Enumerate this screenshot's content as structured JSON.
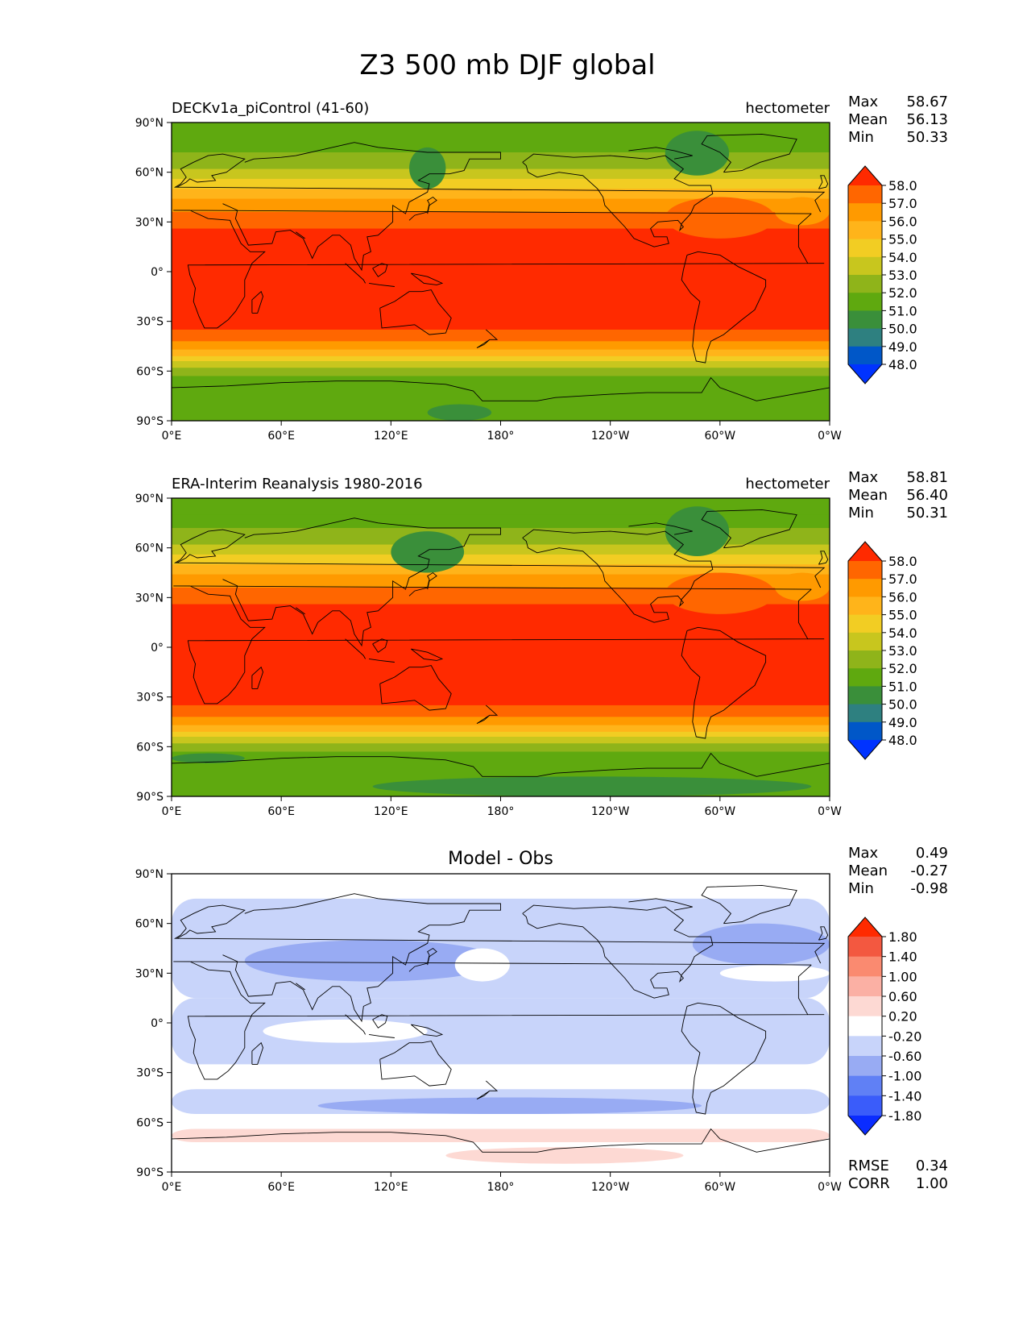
{
  "suptitle": "Z3 500 mb DJF global",
  "lat_ticks": [
    "90°N",
    "60°N",
    "30°N",
    "0°",
    "30°S",
    "60°S",
    "90°S"
  ],
  "lon_ticks": [
    "0°E",
    "60°E",
    "120°E",
    "180°",
    "120°W",
    "60°W",
    "0°W"
  ],
  "full_levels": [
    "58.0",
    "57.0",
    "56.0",
    "55.0",
    "54.0",
    "53.0",
    "52.0",
    "51.0",
    "50.0",
    "49.0",
    "48.0"
  ],
  "full_colors": [
    "#ff2a00",
    "#ff6600",
    "#ff9a00",
    "#ffb41a",
    "#f2cd23",
    "#c8c61e",
    "#8fb41a",
    "#5fa90f",
    "#3a8f3a",
    "#2e8080",
    "#0057c8",
    "#0033ff"
  ],
  "diff_levels": [
    "1.80",
    "1.40",
    "1.00",
    "0.60",
    "0.20",
    "-0.20",
    "-0.60",
    "-1.00",
    "-1.40",
    "-1.80"
  ],
  "diff_colors": [
    "#ff2a00",
    "#f35840",
    "#fa8a70",
    "#fbb0a4",
    "#fdd9d3",
    "#ffffff",
    "#c8d4fa",
    "#98abf3",
    "#6080f5",
    "#3a5cfa",
    "#0a2cff"
  ],
  "panels": [
    {
      "left_title": "DECKv1a_piControl (41-60)",
      "center_title": "",
      "right_title": "hectometer",
      "stats": [
        {
          "label": "Max",
          "value": "58.67"
        },
        {
          "label": "Mean",
          "value": "56.13"
        },
        {
          "label": "Min",
          "value": "50.33"
        }
      ],
      "bottom_stats": []
    },
    {
      "left_title": "ERA-Interim Reanalysis 1980-2016",
      "center_title": "",
      "right_title": "hectometer",
      "stats": [
        {
          "label": "Max",
          "value": "58.81"
        },
        {
          "label": "Mean",
          "value": "56.40"
        },
        {
          "label": "Min",
          "value": "50.31"
        }
      ],
      "bottom_stats": []
    },
    {
      "left_title": "",
      "center_title": "Model - Obs",
      "right_title": "",
      "stats": [
        {
          "label": "Max",
          "value": "0.49"
        },
        {
          "label": "Mean",
          "value": "-0.27"
        },
        {
          "label": "Min",
          "value": "-0.98"
        }
      ],
      "bottom_stats": [
        {
          "label": "RMSE",
          "value": "0.34"
        },
        {
          "label": "CORR",
          "value": "1.00"
        }
      ]
    }
  ],
  "chart_data": [
    {
      "type": "heatmap",
      "title": "DECKv1a_piControl (41-60)",
      "units": "hectometer",
      "x_ticks": [
        "0°E",
        "60°E",
        "120°E",
        "180°",
        "120°W",
        "60°W",
        "0°W"
      ],
      "y_ticks": [
        "90°N",
        "60°N",
        "30°N",
        "0°",
        "30°S",
        "60°S",
        "90°S"
      ],
      "xlim": [
        0,
        360
      ],
      "ylim": [
        -90,
        90
      ],
      "contour_levels": [
        48,
        49,
        50,
        51,
        52,
        53,
        54,
        55,
        56,
        57,
        58
      ],
      "zonal_band_values": [
        {
          "lat": [
            80,
            90
          ],
          "value": 51.5
        },
        {
          "lat": [
            72,
            80
          ],
          "value": 52.0
        },
        {
          "lat": [
            62,
            72
          ],
          "value": 52.5
        },
        {
          "lat": [
            56,
            62
          ],
          "value": 53.5
        },
        {
          "lat": [
            50,
            56
          ],
          "value": 54.5
        },
        {
          "lat": [
            44,
            50
          ],
          "value": 55.5
        },
        {
          "lat": [
            36,
            44
          ],
          "value": 56.5
        },
        {
          "lat": [
            26,
            36
          ],
          "value": 57.5
        },
        {
          "lat": [
            -35,
            26
          ],
          "value": 58.3
        },
        {
          "lat": [
            -42,
            -35
          ],
          "value": 57.5
        },
        {
          "lat": [
            -47,
            -42
          ],
          "value": 56.5
        },
        {
          "lat": [
            -51,
            -47
          ],
          "value": 55.5
        },
        {
          "lat": [
            -54,
            -51
          ],
          "value": 54.5
        },
        {
          "lat": [
            -58,
            -54
          ],
          "value": 53.5
        },
        {
          "lat": [
            -63,
            -58
          ],
          "value": 52.5
        },
        {
          "lat": [
            -90,
            -63
          ],
          "value": 51.5
        }
      ],
      "features": [
        {
          "region": "East Asia trough",
          "lon": [
            130,
            150
          ],
          "lat": [
            50,
            75
          ],
          "value": 50.5
        },
        {
          "region": "Canada trough",
          "lon": [
            270,
            305
          ],
          "lat": [
            58,
            85
          ],
          "value": 50.5
        },
        {
          "region": "Antarctic low",
          "lon": [
            140,
            175
          ],
          "lat": [
            -90,
            -80
          ],
          "value": 50.5
        }
      ],
      "stats": {
        "max": 58.67,
        "mean": 56.13,
        "min": 50.33
      }
    },
    {
      "type": "heatmap",
      "title": "ERA-Interim Reanalysis 1980-2016",
      "units": "hectometer",
      "x_ticks": [
        "0°E",
        "60°E",
        "120°E",
        "180°",
        "120°W",
        "60°W",
        "0°W"
      ],
      "y_ticks": [
        "90°N",
        "60°N",
        "30°N",
        "0°",
        "30°S",
        "60°S",
        "90°S"
      ],
      "xlim": [
        0,
        360
      ],
      "ylim": [
        -90,
        90
      ],
      "contour_levels": [
        48,
        49,
        50,
        51,
        52,
        53,
        54,
        55,
        56,
        57,
        58
      ],
      "zonal_band_values": [
        {
          "lat": [
            80,
            90
          ],
          "value": 51.5
        },
        {
          "lat": [
            72,
            80
          ],
          "value": 52.0
        },
        {
          "lat": [
            62,
            72
          ],
          "value": 52.5
        },
        {
          "lat": [
            56,
            62
          ],
          "value": 53.5
        },
        {
          "lat": [
            50,
            56
          ],
          "value": 54.5
        },
        {
          "lat": [
            44,
            50
          ],
          "value": 55.5
        },
        {
          "lat": [
            36,
            44
          ],
          "value": 56.5
        },
        {
          "lat": [
            26,
            36
          ],
          "value": 57.5
        },
        {
          "lat": [
            -35,
            26
          ],
          "value": 58.3
        },
        {
          "lat": [
            -42,
            -35
          ],
          "value": 57.5
        },
        {
          "lat": [
            -47,
            -42
          ],
          "value": 56.5
        },
        {
          "lat": [
            -51,
            -47
          ],
          "value": 55.5
        },
        {
          "lat": [
            -54,
            -51
          ],
          "value": 54.5
        },
        {
          "lat": [
            -58,
            -54
          ],
          "value": 53.5
        },
        {
          "lat": [
            -63,
            -58
          ],
          "value": 52.5
        },
        {
          "lat": [
            -90,
            -63
          ],
          "value": 51.5
        }
      ],
      "features": [
        {
          "region": "East Asia trough",
          "lon": [
            120,
            160
          ],
          "lat": [
            45,
            70
          ],
          "value": 51.0
        },
        {
          "region": "Canada trough",
          "lon": [
            270,
            305
          ],
          "lat": [
            55,
            85
          ],
          "value": 50.5
        },
        {
          "region": "Southern high-latitude low",
          "lon": [
            0,
            40
          ],
          "lat": [
            -70,
            -64
          ],
          "value": 50.5
        },
        {
          "region": "Antarctic low",
          "lon": [
            110,
            350
          ],
          "lat": [
            -90,
            -78
          ],
          "value": 50.5
        }
      ],
      "stats": {
        "max": 58.81,
        "mean": 56.4,
        "min": 50.31
      }
    },
    {
      "type": "heatmap",
      "title": "Model - Obs",
      "x_ticks": [
        "0°E",
        "60°E",
        "120°E",
        "180°",
        "120°W",
        "60°W",
        "0°W"
      ],
      "y_ticks": [
        "90°N",
        "60°N",
        "30°N",
        "0°",
        "30°S",
        "60°S",
        "90°S"
      ],
      "xlim": [
        0,
        360
      ],
      "ylim": [
        -90,
        90
      ],
      "contour_levels": [
        -1.8,
        -1.4,
        -1.0,
        -0.6,
        -0.2,
        0.2,
        0.6,
        1.0,
        1.4,
        1.8
      ],
      "features": [
        {
          "region": "Northern mid-latitudes",
          "lon": [
            0,
            360
          ],
          "lat": [
            15,
            75
          ],
          "value": -0.4
        },
        {
          "region": "Tropics",
          "lon": [
            0,
            360
          ],
          "lat": [
            -25,
            15
          ],
          "value": -0.4
        },
        {
          "region": "Eurasian trough",
          "lon": [
            40,
            180
          ],
          "lat": [
            25,
            50
          ],
          "value": -0.8
        },
        {
          "region": "North Atlantic",
          "lon": [
            285,
            360
          ],
          "lat": [
            35,
            60
          ],
          "value": -0.8
        },
        {
          "region": "Southern Ocean band",
          "lon": [
            0,
            360
          ],
          "lat": [
            -55,
            -40
          ],
          "value": -0.4
        },
        {
          "region": "Southern Ocean minima",
          "lon": [
            80,
            290
          ],
          "lat": [
            -55,
            -45
          ],
          "value": -0.8
        },
        {
          "region": "Southern high-latitude band",
          "lon": [
            0,
            360
          ],
          "lat": [
            -72,
            -64
          ],
          "value": 0.4
        },
        {
          "region": "Antarctic interior",
          "lon": [
            150,
            280
          ],
          "lat": [
            -85,
            -75
          ],
          "value": 0.4
        }
      ],
      "stats": {
        "max": 0.49,
        "mean": -0.27,
        "min": -0.98,
        "rmse": 0.34,
        "corr": 1.0
      }
    }
  ]
}
